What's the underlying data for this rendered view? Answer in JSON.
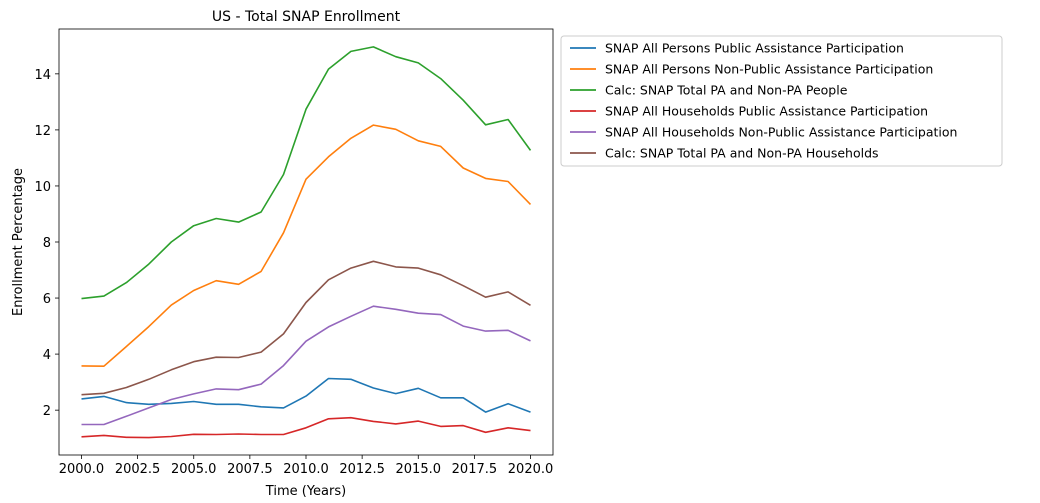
{
  "chart_data": {
    "type": "line",
    "title": "US - Total SNAP Enrollment",
    "xlabel": "Time (Years)",
    "ylabel": "Enrollment Percentage",
    "xlim": [
      1999.0,
      2021.0
    ],
    "ylim": [
      0.4,
      15.6
    ],
    "xticks": [
      "2000.0",
      "2002.5",
      "2005.0",
      "2007.5",
      "2010.0",
      "2012.5",
      "2015.0",
      "2017.5",
      "2020.0"
    ],
    "yticks": [
      "2",
      "4",
      "6",
      "8",
      "10",
      "12",
      "14"
    ],
    "legend_position": "outside-right-top",
    "grid": false,
    "x": [
      2000,
      2001,
      2002,
      2003,
      2004,
      2005,
      2006,
      2007,
      2008,
      2009,
      2010,
      2011,
      2012,
      2013,
      2014,
      2015,
      2016,
      2017,
      2018,
      2019,
      2020
    ],
    "series": [
      {
        "name": "SNAP All Persons Public Assistance Participation",
        "color": "#1f77b4",
        "values": [
          2.4,
          2.49,
          2.27,
          2.21,
          2.24,
          2.31,
          2.21,
          2.21,
          2.12,
          2.08,
          2.5,
          3.13,
          3.1,
          2.79,
          2.59,
          2.78,
          2.44,
          2.44,
          1.93,
          2.23,
          1.93
        ]
      },
      {
        "name": "SNAP All Persons Non-Public Assistance Participation",
        "color": "#ff7f0e",
        "values": [
          3.58,
          3.57,
          4.27,
          4.98,
          5.75,
          6.27,
          6.62,
          6.49,
          6.95,
          8.33,
          10.24,
          11.04,
          11.7,
          12.17,
          12.02,
          11.61,
          11.41,
          10.64,
          10.27,
          10.16,
          9.34
        ]
      },
      {
        "name": "Calc: SNAP Total PA and Non-PA People",
        "color": "#2ca02c",
        "values": [
          5.98,
          6.07,
          6.55,
          7.21,
          8.0,
          8.58,
          8.84,
          8.71,
          9.07,
          10.41,
          12.74,
          14.17,
          14.8,
          14.96,
          14.61,
          14.39,
          13.83,
          13.06,
          12.18,
          12.37,
          11.27
        ]
      },
      {
        "name": "SNAP All Households Public Assistance Participation",
        "color": "#d62728",
        "values": [
          1.05,
          1.1,
          1.03,
          1.02,
          1.06,
          1.14,
          1.13,
          1.15,
          1.13,
          1.13,
          1.37,
          1.69,
          1.73,
          1.6,
          1.51,
          1.61,
          1.42,
          1.45,
          1.21,
          1.37,
          1.27
        ]
      },
      {
        "name": "SNAP All Households Non-Public Assistance Participation",
        "color": "#9467bd",
        "values": [
          1.49,
          1.49,
          1.78,
          2.08,
          2.38,
          2.58,
          2.76,
          2.73,
          2.93,
          3.59,
          4.46,
          4.97,
          5.35,
          5.71,
          5.6,
          5.46,
          5.41,
          5.0,
          4.82,
          4.85,
          4.47
        ]
      },
      {
        "name": "Calc: SNAP Total PA and Non-PA Households",
        "color": "#8c564b",
        "values": [
          2.55,
          2.6,
          2.81,
          3.1,
          3.44,
          3.73,
          3.89,
          3.88,
          4.07,
          4.72,
          5.84,
          6.65,
          7.07,
          7.31,
          7.11,
          7.07,
          6.83,
          6.44,
          6.03,
          6.22,
          5.74
        ]
      }
    ]
  }
}
